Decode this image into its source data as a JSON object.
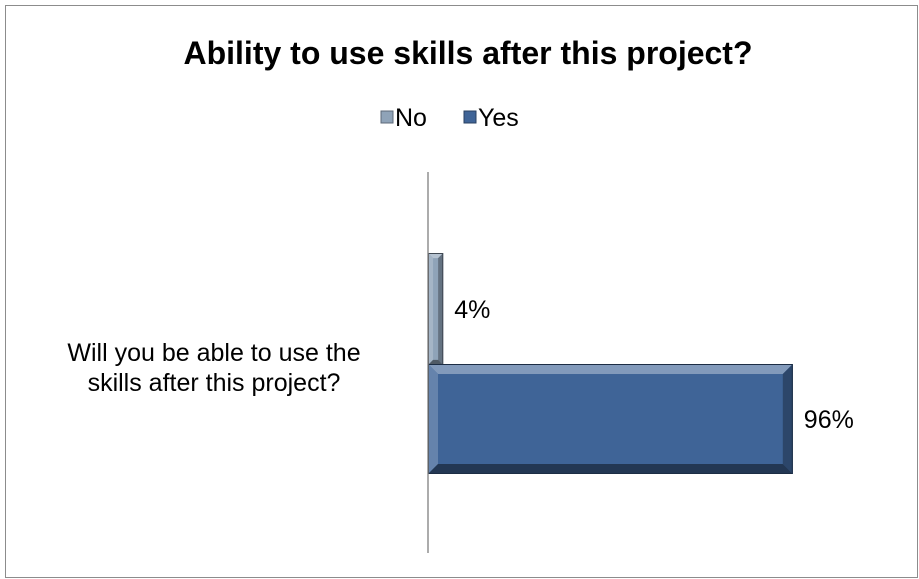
{
  "chart_data": {
    "type": "bar",
    "orientation": "horizontal",
    "title": "Ability to use skills after this project?",
    "categories": [
      "Will you be able to use the skills after this project?"
    ],
    "category_lines": [
      "Will you be able to use the",
      "skills after this project?"
    ],
    "series": [
      {
        "name": "No",
        "values": [
          4
        ],
        "color": "#8fa3b8",
        "value_label": "4%"
      },
      {
        "name": "Yes",
        "values": [
          96
        ],
        "color": "#3f6497",
        "value_label": "96%"
      }
    ],
    "unit": "%",
    "xlim": [
      0,
      100
    ],
    "legend_position": "top",
    "grid": false,
    "bar_style": "beveled"
  }
}
